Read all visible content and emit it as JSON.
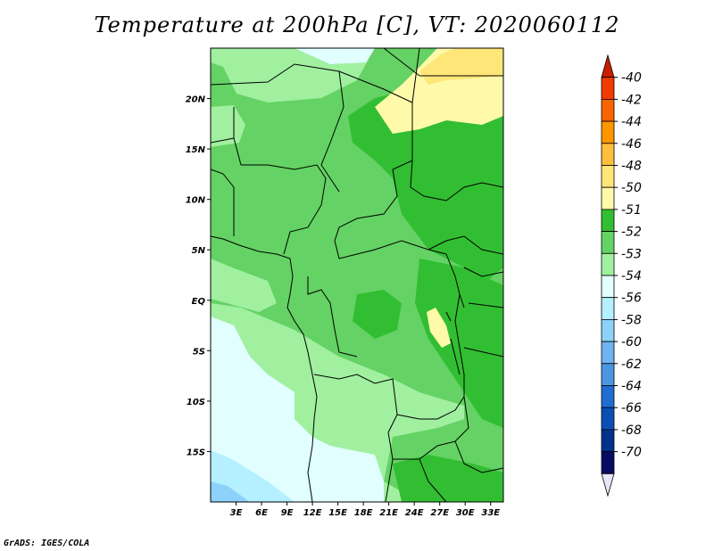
{
  "title": "Temperature at 200hPa [C], VT: 2020060112",
  "credit": "GrADS: IGES/COLA",
  "map": {
    "lon_range": [
      0,
      34.5
    ],
    "lat_range": [
      -20,
      25
    ],
    "lon_ticks": [
      3,
      6,
      9,
      12,
      15,
      18,
      21,
      24,
      27,
      30,
      33
    ],
    "lon_labels": [
      "3E",
      "6E",
      "9E",
      "12E",
      "15E",
      "18E",
      "21E",
      "24E",
      "27E",
      "30E",
      "33E"
    ],
    "lat_ticks": [
      20,
      15,
      10,
      5,
      0,
      -5,
      -10,
      -15
    ],
    "lat_labels": [
      "20N",
      "15N",
      "10N",
      "5N",
      "EQ",
      "5S",
      "10S",
      "15S"
    ]
  },
  "colorbar": {
    "labels": [
      "-40",
      "-42",
      "-44",
      "-46",
      "-48",
      "-50",
      "-51",
      "-52",
      "-53",
      "-54",
      "-56",
      "-58",
      "-60",
      "-62",
      "-64",
      "-66",
      "-68",
      "-70"
    ],
    "colors": [
      "#c81e00",
      "#f03c00",
      "#fa6400",
      "#ff9600",
      "#ffbe3c",
      "#ffe678",
      "#fffaaa",
      "#32be32",
      "#64d264",
      "#a0f0a0",
      "#e1ffff",
      "#b4f0ff",
      "#8cd2fa",
      "#6eb4f0",
      "#4b96e1",
      "#1e6ed2",
      "#0a50b4",
      "#00328c",
      "#0a0a64",
      "#e6e6fa"
    ]
  }
}
